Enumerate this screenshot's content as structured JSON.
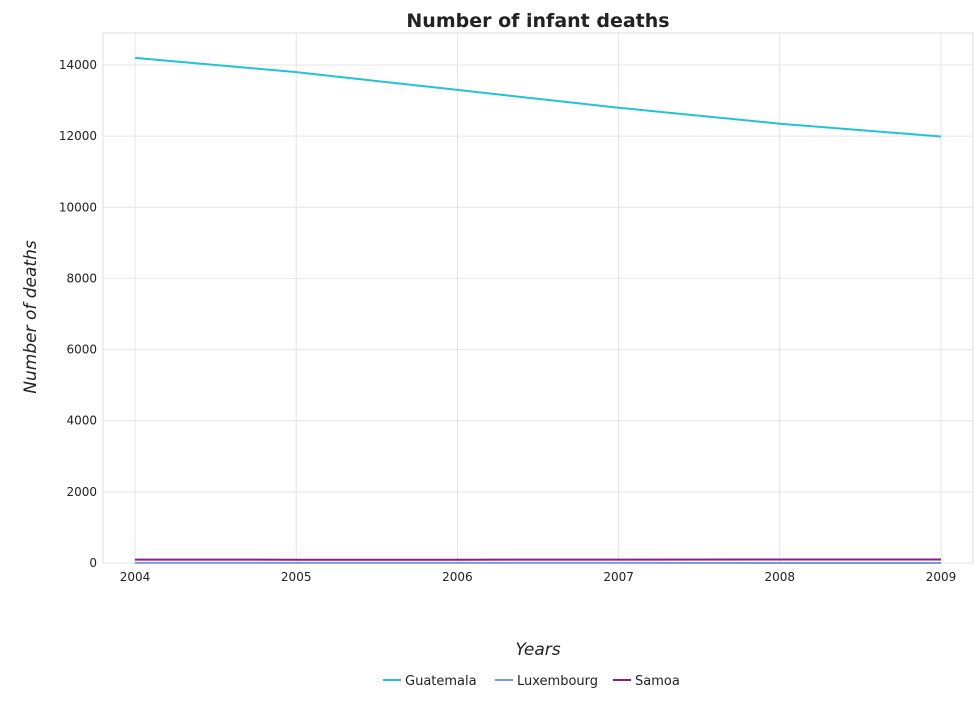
{
  "chart_data": {
    "type": "line",
    "title": "Number of infant deaths",
    "xlabel": "Years",
    "ylabel": "Number of deaths",
    "categories": [
      "2004",
      "2005",
      "2006",
      "2007",
      "2008",
      "2009"
    ],
    "y_ticks": [
      "0",
      "2000",
      "4000",
      "6000",
      "8000",
      "10000",
      "12000",
      "14000"
    ],
    "ylim": [
      0,
      14900
    ],
    "grid": true,
    "legend_position": "bottom-center",
    "series": [
      {
        "name": "Guatemala",
        "color": "#22c4d4",
        "values": [
          14200,
          13800,
          13300,
          12800,
          12350,
          11990
        ]
      },
      {
        "name": "Luxembourg",
        "color": "#7799dd",
        "values": [
          2,
          2,
          2,
          2,
          1,
          1
        ]
      },
      {
        "name": "Samoa",
        "color": "#8b1a8b",
        "values": [
          95,
          93,
          93,
          95,
          98,
          100
        ]
      }
    ]
  }
}
